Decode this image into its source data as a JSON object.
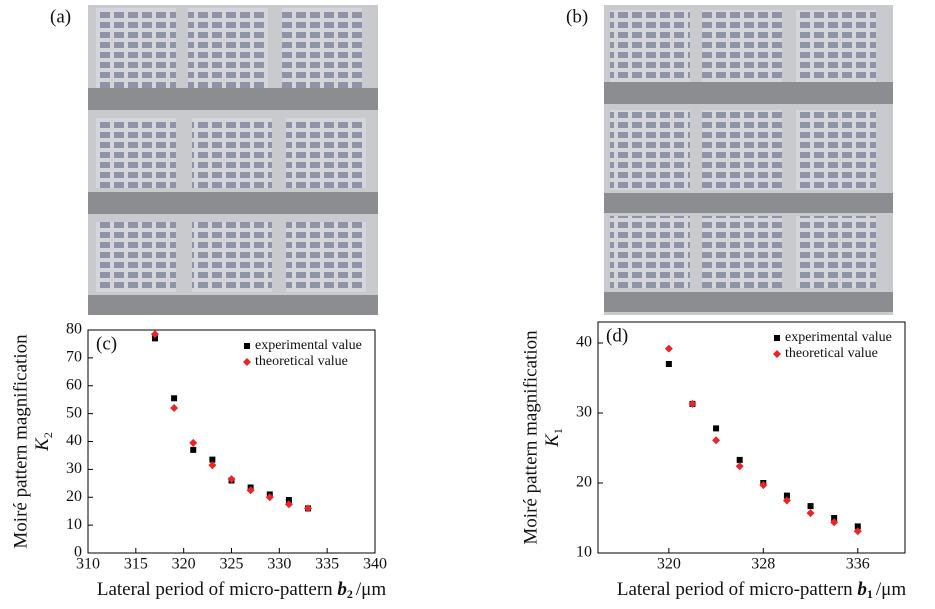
{
  "panels": {
    "a": "(a)",
    "b": "(b)"
  },
  "chart_data": [
    {
      "type": "scatter",
      "label": "(c)",
      "y_label": "Moiré pattern magnification",
      "y_symbol": "K",
      "y_symbol_sub": "2",
      "x_label": "Lateral period of micro-pattern",
      "x_symbol": "b",
      "x_symbol_sub": "2",
      "x_unit": "/μm",
      "xlim": [
        310,
        340
      ],
      "xticks": [
        310,
        315,
        320,
        325,
        330,
        335,
        340
      ],
      "ylim": [
        0,
        80
      ],
      "yticks": [
        0,
        10,
        20,
        30,
        40,
        50,
        60,
        70,
        80
      ],
      "series": [
        {
          "name": "experimental value",
          "color": "#000000",
          "marker": "square",
          "x": [
            317,
            319,
            321,
            323,
            325,
            327,
            329,
            331,
            333
          ],
          "values": [
            77,
            55.5,
            37,
            33.5,
            26,
            23.5,
            21,
            19,
            16
          ]
        },
        {
          "name": "theoretical value",
          "color": "#e8262a",
          "marker": "diamond",
          "x": [
            317,
            319,
            321,
            323,
            325,
            327,
            329,
            331,
            333
          ],
          "values": [
            78.5,
            52,
            39.5,
            31.5,
            26.5,
            22.5,
            20,
            17.5,
            16
          ]
        }
      ]
    },
    {
      "type": "scatter",
      "label": "(d)",
      "y_label": "Moiré pattern magnification",
      "y_symbol": "K",
      "y_symbol_sub": "1",
      "x_label": "Lateral period of micro-pattern",
      "x_symbol": "b",
      "x_symbol_sub": "1",
      "x_unit": "/μm",
      "xlim": [
        314,
        340
      ],
      "xticks": [
        320,
        328,
        336
      ],
      "ylim": [
        10,
        43
      ],
      "yticks": [
        10,
        20,
        30,
        40
      ],
      "series": [
        {
          "name": "experimental value",
          "color": "#000000",
          "marker": "square",
          "x": [
            320,
            322,
            324,
            326,
            328,
            330,
            332,
            334,
            336
          ],
          "values": [
            37,
            31.3,
            27.8,
            23.3,
            20,
            18.2,
            16.7,
            15,
            13.8
          ]
        },
        {
          "name": "theoretical value",
          "color": "#e8262a",
          "marker": "diamond",
          "x": [
            320,
            322,
            324,
            326,
            328,
            330,
            332,
            334,
            336
          ],
          "values": [
            39.2,
            31.3,
            26.1,
            22.4,
            19.7,
            17.5,
            15.7,
            14.4,
            13.1
          ]
        }
      ]
    }
  ]
}
